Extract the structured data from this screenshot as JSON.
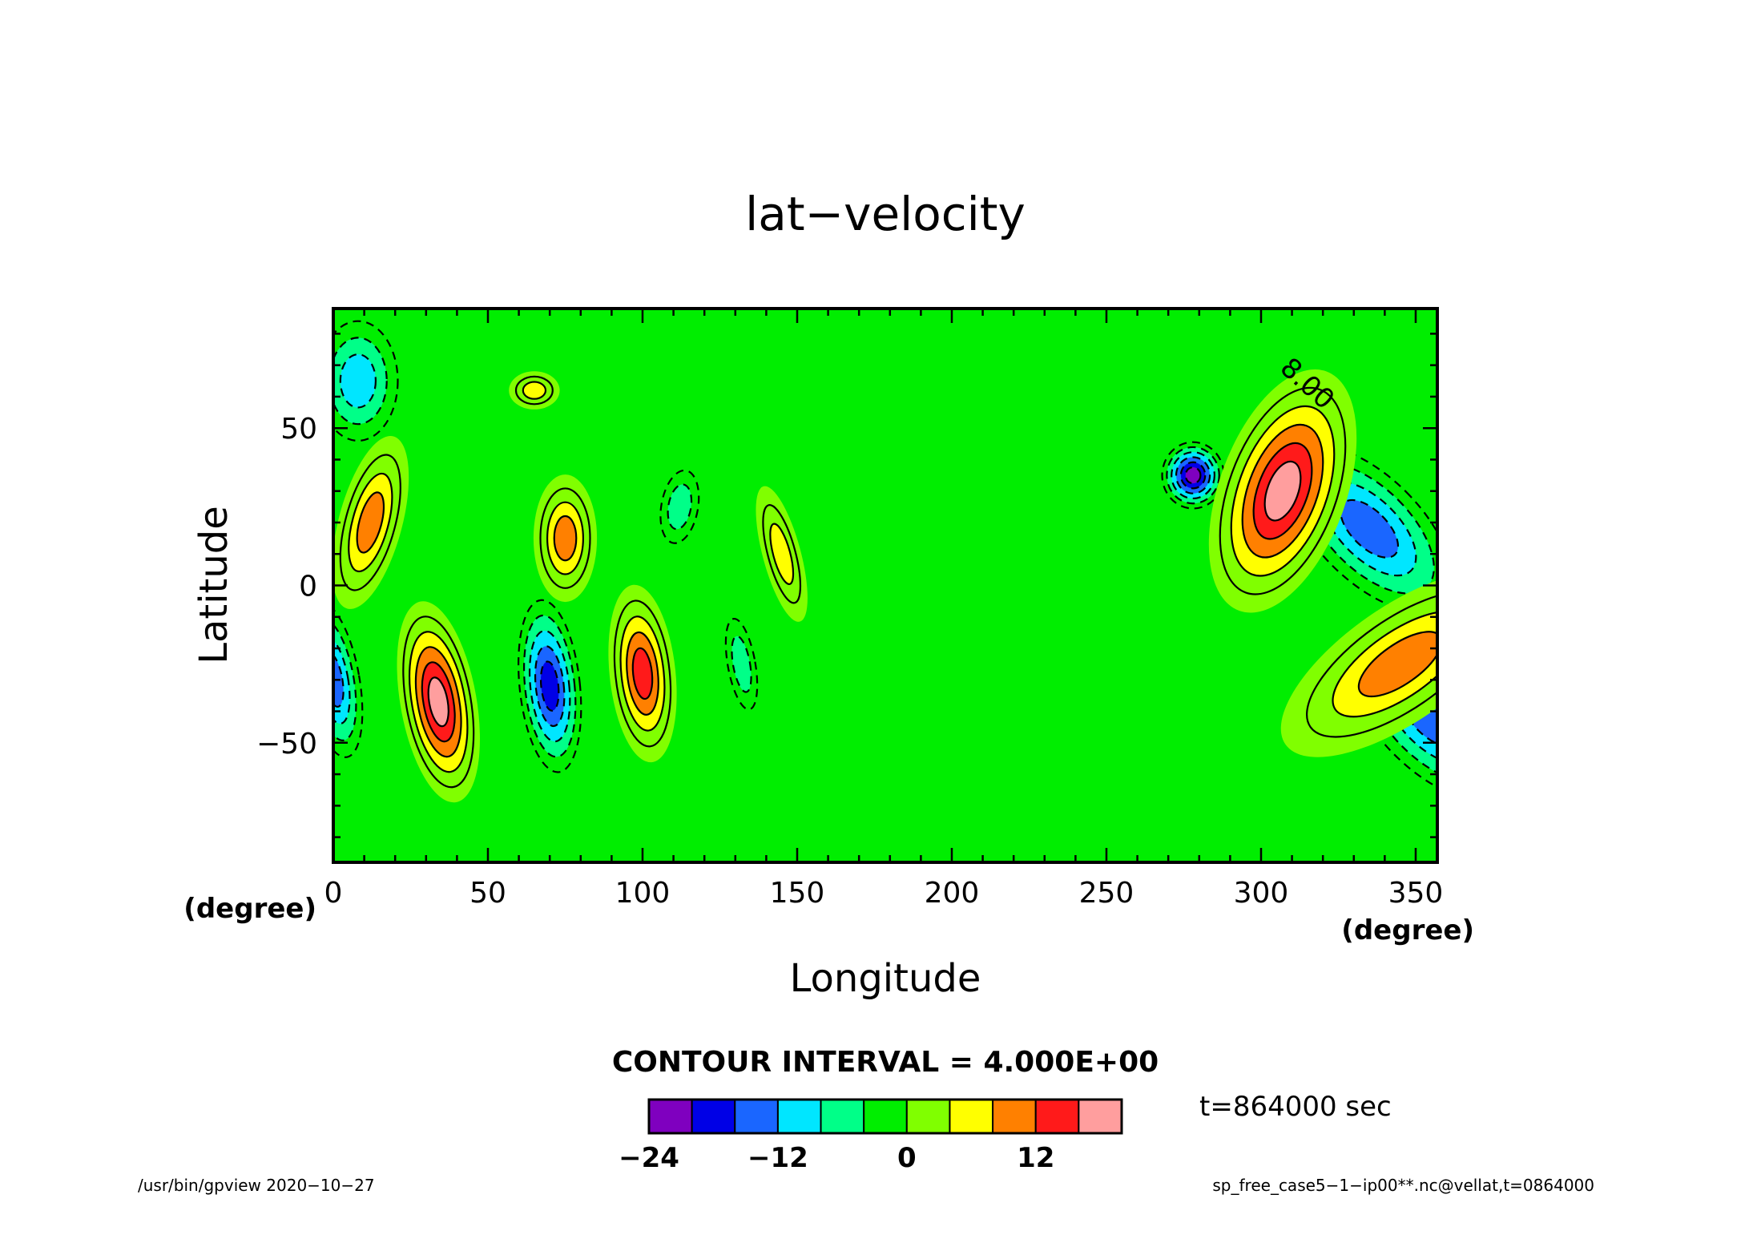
{
  "chart_data": {
    "type": "heatmap",
    "subtype": "filled-contour",
    "title": "lat−velocity",
    "xlabel": "Longitude",
    "ylabel": "Latitude",
    "x_unit": "(degree)",
    "y_unit": "(degree)",
    "xlim": [
      0,
      357
    ],
    "ylim": [
      -88,
      88
    ],
    "x_ticks": [
      0,
      50,
      100,
      150,
      200,
      250,
      300,
      350
    ],
    "x_tick_labels": [
      "0",
      "50",
      "100",
      "150",
      "200",
      "250",
      "300",
      "350"
    ],
    "y_ticks": [
      -50,
      0,
      50
    ],
    "y_tick_labels": [
      "−50",
      "0",
      "50"
    ],
    "contour_interval_label": "CONTOUR INTERVAL = 4.000E+00",
    "contour_interval": 4,
    "contour_label": "8.00",
    "time_label": "t=864000 sec",
    "colorbar": {
      "levels": [
        -24,
        -20,
        -16,
        -12,
        -8,
        -4,
        0,
        4,
        8,
        12,
        16,
        20
      ],
      "tick_values": [
        -24,
        -12,
        0,
        12
      ],
      "tick_labels": [
        "−24",
        "−12",
        "0",
        "12"
      ],
      "colors": [
        "#7f00bf",
        "#0000e6",
        "#1a66ff",
        "#00e6ff",
        "#00ff88",
        "#00ee00",
        "#80ff00",
        "#ffff00",
        "#ff8000",
        "#ff1a1a",
        "#ff9e9e"
      ]
    },
    "features": [
      {
        "lon": 278,
        "lat": 35,
        "value": -22
      },
      {
        "lon": 70,
        "lat": -32,
        "value": -18
      },
      {
        "lon": 335,
        "lat": 18,
        "value": -14
      },
      {
        "lon": 355,
        "lat": -42,
        "value": -14
      },
      {
        "lon": 8,
        "lat": 65,
        "value": -10
      },
      {
        "lon": 0,
        "lat": -30,
        "value": -14
      },
      {
        "lon": 34,
        "lat": -37,
        "value": 18
      },
      {
        "lon": 307,
        "lat": 30,
        "value": 18
      },
      {
        "lon": 100,
        "lat": -28,
        "value": 14
      },
      {
        "lon": 12,
        "lat": 20,
        "value": 10
      },
      {
        "lon": 345,
        "lat": -25,
        "value": 10
      },
      {
        "lon": 75,
        "lat": 15,
        "value": 9
      },
      {
        "lon": 145,
        "lat": 10,
        "value": 6
      },
      {
        "lon": 65,
        "lat": 62,
        "value": 5
      },
      {
        "lon": 112,
        "lat": 25,
        "value": -6
      },
      {
        "lon": 132,
        "lat": -25,
        "value": -6
      }
    ]
  },
  "footer": {
    "left": "/usr/bin/gpview   2020−10−27",
    "right": "sp_free_case5−1−ip00**.nc@vellat,t=0864000"
  }
}
